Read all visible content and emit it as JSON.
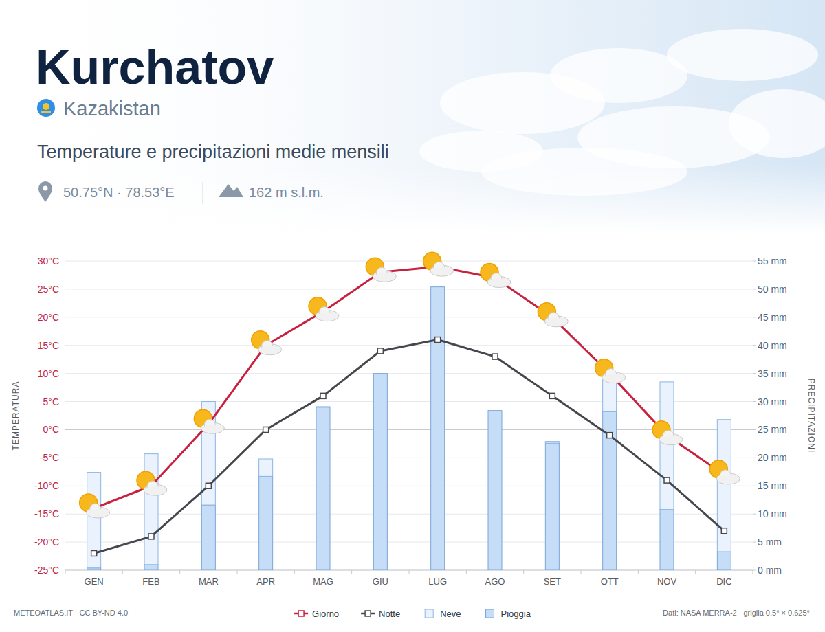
{
  "header": {
    "title": "Kurchatov",
    "country": "Kazakistan",
    "subtitle": "Temperature e precipitazioni medie mensili",
    "coordinates": "50.75°N · 78.53°E",
    "elevation": "162 m s.l.m."
  },
  "footer": {
    "source_left": "METEOATLAS.IT · CC BY-ND 4.0",
    "source_right": "Dati: NASA MERRA-2 · griglia 0.5° × 0.625°"
  },
  "chart_data": {
    "type": "bar",
    "stacked": true,
    "grid": true,
    "legend": "bottom",
    "y_label": "TEMPERATURA",
    "y2_label": "PRECIPITAZIONI",
    "categories": [
      "GEN",
      "FEB",
      "MAR",
      "APR",
      "MAG",
      "GIU",
      "LUG",
      "AGO",
      "SET",
      "OTT",
      "NOV",
      "DIC"
    ],
    "ylim": [
      -25,
      30
    ],
    "yticks": [
      {
        "value": -25,
        "label": "-25°C"
      },
      {
        "value": -20,
        "label": "-20°C"
      },
      {
        "value": -15,
        "label": "-15°C"
      },
      {
        "value": -10,
        "label": "-10°C"
      },
      {
        "value": -5,
        "label": "-5°C"
      },
      {
        "value": 0,
        "label": "0°C"
      },
      {
        "value": 5,
        "label": "5°C"
      },
      {
        "value": 10,
        "label": "10°C"
      },
      {
        "value": 15,
        "label": "15°C"
      },
      {
        "value": 20,
        "label": "20°C"
      },
      {
        "value": 25,
        "label": "25°C"
      },
      {
        "value": 30,
        "label": "30°C"
      }
    ],
    "y2lim": [
      0,
      55
    ],
    "y2ticks": [
      {
        "value": 0,
        "label": "0 mm"
      },
      {
        "value": 5,
        "label": "5 mm"
      },
      {
        "value": 10,
        "label": "10 mm"
      },
      {
        "value": 15,
        "label": "15 mm"
      },
      {
        "value": 20,
        "label": "20 mm"
      },
      {
        "value": 25,
        "label": "25 mm"
      },
      {
        "value": 30,
        "label": "30 mm"
      },
      {
        "value": 35,
        "label": "35 mm"
      },
      {
        "value": 40,
        "label": "40 mm"
      },
      {
        "value": 45,
        "label": "45 mm"
      },
      {
        "value": 50,
        "label": "50 mm"
      },
      {
        "value": 55,
        "label": "55 mm"
      }
    ],
    "series": [
      {
        "name": "Giorno",
        "type": "line",
        "color": "#c8203f",
        "marker": "square",
        "values": [
          -14,
          -10,
          1,
          15,
          21,
          28,
          29,
          27,
          20,
          10,
          -1,
          -8
        ]
      },
      {
        "name": "Notte",
        "type": "line",
        "color": "#46474c",
        "marker": "square",
        "values": [
          -22,
          -19,
          -10,
          0,
          6,
          14,
          16,
          13,
          6,
          -1,
          -9,
          -18
        ]
      },
      {
        "name": "Neve",
        "type": "bar",
        "axis": "y2",
        "color": "#eaf3fd",
        "values": [
          17.0,
          19.7,
          18.4,
          3.1,
          0.1,
          0,
          0,
          0,
          0.3,
          6.0,
          22.7,
          23.5
        ]
      },
      {
        "name": "Pioggia",
        "type": "bar",
        "axis": "y2",
        "color": "#c6ddf8",
        "values": [
          0.4,
          1.0,
          11.6,
          16.7,
          29.0,
          35.0,
          50.4,
          28.4,
          22.6,
          28.2,
          10.8,
          3.3
        ]
      }
    ]
  }
}
